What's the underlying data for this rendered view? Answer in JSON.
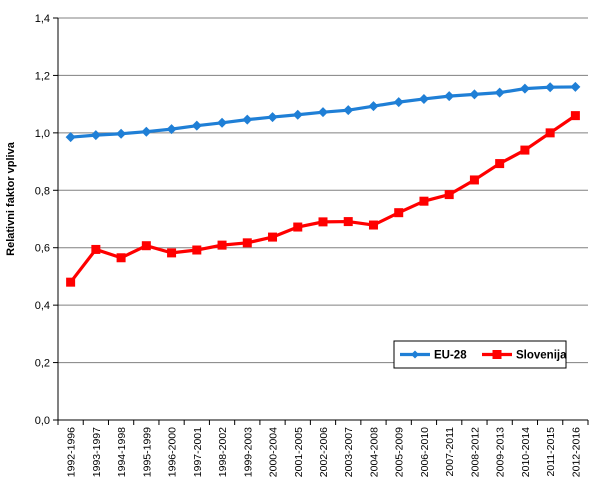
{
  "chart_data": {
    "type": "line",
    "title": "",
    "xlabel": "",
    "ylabel": "Relativni faktor vpliva",
    "ylim": [
      0,
      1.4
    ],
    "ytick_step": 0.2,
    "ytick_labels": [
      "0,0",
      "0,2",
      "0,4",
      "0,6",
      "0,8",
      "1,0",
      "1,2",
      "1,4"
    ],
    "grid": "horizontal",
    "legend_position": "bottom-right",
    "categories": [
      "1992-1996",
      "1993-1997",
      "1994-1998",
      "1995-1999",
      "1996-2000",
      "1997-2001",
      "1998-2002",
      "1999-2003",
      "2000-2004",
      "2001-2005",
      "2002-2006",
      "2003-2007",
      "2004-2008",
      "2005-2009",
      "2006-2010",
      "2007-2011",
      "2008-2012",
      "2009-2013",
      "2010-2014",
      "2011-2015",
      "2012-2016"
    ],
    "series": [
      {
        "name": "EU-28",
        "color": "#1f7fd6",
        "marker": "diamond",
        "values": [
          0.985,
          0.992,
          0.997,
          1.004,
          1.013,
          1.025,
          1.035,
          1.046,
          1.055,
          1.063,
          1.072,
          1.079,
          1.093,
          1.107,
          1.118,
          1.128,
          1.134,
          1.14,
          1.154,
          1.159,
          1.16
        ]
      },
      {
        "name": "Slovenija",
        "color": "#ff0000",
        "marker": "square",
        "values": [
          0.48,
          0.594,
          0.565,
          0.607,
          0.582,
          0.592,
          0.609,
          0.617,
          0.637,
          0.672,
          0.69,
          0.691,
          0.679,
          0.722,
          0.762,
          0.785,
          0.836,
          0.893,
          0.94,
          1.0,
          1.06
        ]
      }
    ]
  }
}
